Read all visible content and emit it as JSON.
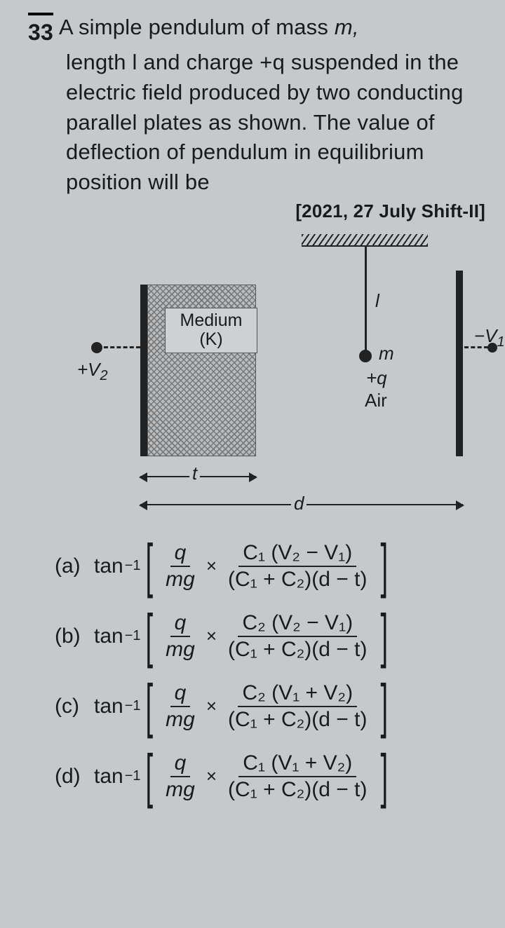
{
  "question": {
    "number": "33",
    "text_line1": "A simple pendulum of mass ",
    "text_rest": "length l and charge +q suspended in the electric field produced by two conducting parallel plates as shown. The value of deflection of pendulum in equilibrium position will be",
    "var_m": "m,",
    "meta": "[2021, 27 July Shift-II]"
  },
  "diagram": {
    "medium_label": "Medium",
    "medium_k": "(K)",
    "plate_left_v": "+V",
    "plate_left_sub": "2",
    "plate_right_v": "−V",
    "plate_right_sub": "1",
    "pendulum_l": "l",
    "pendulum_m": "m",
    "pendulum_q": "+q",
    "air_label": "Air",
    "t_label": "t",
    "d_label": "d",
    "background_color": "#c5c9cc",
    "line_color": "#222222"
  },
  "options": {
    "a": {
      "label": "(a)",
      "func": "tan",
      "exp": "−1",
      "f1_num": "q",
      "f1_den": "mg",
      "f2_num": "C₁ (V₂ − V₁)",
      "f2_den": "(C₁ + C₂)(d − t)"
    },
    "b": {
      "label": "(b)",
      "func": "tan",
      "exp": "−1",
      "f1_num": "q",
      "f1_den": "mg",
      "f2_num": "C₂ (V₂ − V₁)",
      "f2_den": "(C₁ + C₂)(d − t)"
    },
    "c": {
      "label": "(c)",
      "func": "tan",
      "exp": "−1",
      "f1_num": "q",
      "f1_den": "mg",
      "f2_num": "C₂ (V₁ + V₂)",
      "f2_den": "(C₁ + C₂)(d − t)"
    },
    "d": {
      "label": "(d)",
      "func": "tan",
      "exp": "−1",
      "f1_num": "q",
      "f1_den": "mg",
      "f2_num": "C₁ (V₁ + V₂)",
      "f2_den": "(C₁ + C₂)(d − t)"
    }
  }
}
